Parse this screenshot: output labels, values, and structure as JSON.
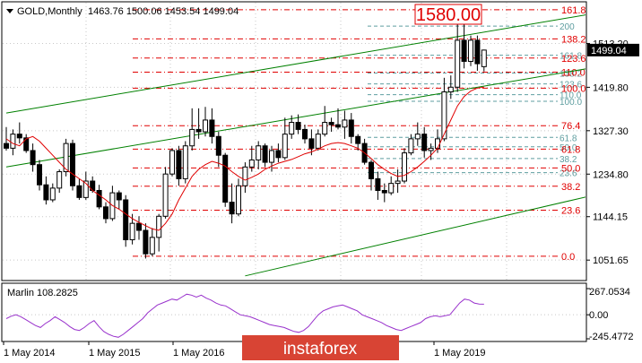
{
  "header": {
    "symbol": "GOLD,Monthly",
    "ohlc": "1463.76 1500.06 1453.54 1499.04"
  },
  "callout": "1580.00",
  "watermark": "instaforex",
  "colors": {
    "bg": "#ffffff",
    "grid": "#c8c8c8",
    "candle": "#000000",
    "ma": "#e00000",
    "channel": "#008000",
    "fib_red": "#e00000",
    "fib_teal": "#5f9ea0",
    "oscillator": "#9932cc",
    "price_box": "#000000",
    "watermark_bg": "#d84434"
  },
  "oscillator": {
    "name": "Marlin 108.2825",
    "scale_labels": [
      "267.0534",
      "0.00",
      "-245.4772"
    ],
    "ylim": [
      -245.4772,
      267.0534
    ],
    "values": [
      -40,
      -15,
      0,
      -20,
      -50,
      -80,
      -110,
      -130,
      -90,
      -60,
      -20,
      -50,
      -80,
      -120,
      -150,
      -160,
      -130,
      -90,
      -60,
      -120,
      -170,
      -200,
      -220,
      -230,
      -200,
      -160,
      -120,
      -80,
      -40,
      20,
      60,
      100,
      120,
      140,
      160,
      150,
      180,
      210,
      200,
      180,
      200,
      170,
      150,
      120,
      100,
      90,
      60,
      30,
      0,
      -10,
      -20,
      -40,
      -60,
      -80,
      -100,
      -110,
      -120,
      -130,
      -150,
      -170,
      -180,
      -160,
      -120,
      -60,
      0,
      40,
      60,
      80,
      90,
      100,
      80,
      60,
      40,
      0,
      -20,
      -40,
      -60,
      -80,
      -110,
      -130,
      -150,
      -160,
      -140,
      -120,
      -100,
      -80,
      -40,
      -20,
      -10,
      -20,
      -10,
      0,
      60,
      120,
      160,
      150,
      120,
      110,
      108
    ]
  },
  "chart_data": {
    "type": "candlestick",
    "title": "GOLD,Monthly",
    "ylim": [
      1010,
      1600
    ],
    "price_labels": [
      "1513.20",
      "1419.80",
      "1327.30",
      "1234.80",
      "1144.15",
      "1051.65"
    ],
    "price_values": [
      1513.2,
      1419.8,
      1327.3,
      1234.8,
      1144.15,
      1051.65
    ],
    "current_price": "1499.04",
    "current_price_value": 1499.04,
    "x_labels": [
      "1 May 2014",
      "1 May 2015",
      "1 May 2016",
      "1 May 2019"
    ],
    "fib_red": [
      {
        "label": "161.8",
        "price": 1585
      },
      {
        "label": "138.2",
        "price": 1523
      },
      {
        "label": "123.6",
        "price": 1482
      },
      {
        "label": "110.0",
        "price": 1452
      },
      {
        "label": "100.0",
        "price": 1418
      },
      {
        "label": "76.4",
        "price": 1338
      },
      {
        "label": "61.8",
        "price": 1288
      },
      {
        "label": "50.0",
        "price": 1248
      },
      {
        "label": "38.2",
        "price": 1209
      },
      {
        "label": "23.6",
        "price": 1158
      },
      {
        "label": "0.0",
        "price": 1060
      }
    ],
    "fib_teal": [
      {
        "label": "200",
        "price": 1550
      },
      {
        "label": "161.8",
        "price": 1488
      },
      {
        "label": "138.2",
        "price": 1450
      },
      {
        "label": "123.6",
        "price": 1427
      },
      {
        "label": "110.0",
        "price": 1404
      },
      {
        "label": "100.0",
        "price": 1390
      },
      {
        "label": "61.8",
        "price": 1313
      },
      {
        "label": "50.0",
        "price": 1293
      },
      {
        "label": "38.2",
        "price": 1268
      },
      {
        "label": "23.6",
        "price": 1238
      }
    ],
    "channel_lines": [
      {
        "name": "upper",
        "start": [
          0,
          1365
        ],
        "end": [
          117,
          1645
        ]
      },
      {
        "name": "middle",
        "start": [
          0,
          1250
        ],
        "end": [
          117,
          1530
        ]
      },
      {
        "name": "lower",
        "start": [
          36,
          1018
        ],
        "end": [
          124,
          1306
        ]
      }
    ],
    "candles": [
      {
        "o": 1300,
        "h": 1335,
        "l": 1285,
        "c": 1290
      },
      {
        "o": 1290,
        "h": 1330,
        "l": 1275,
        "c": 1320
      },
      {
        "o": 1320,
        "h": 1345,
        "l": 1300,
        "c": 1312
      },
      {
        "o": 1312,
        "h": 1320,
        "l": 1280,
        "c": 1285
      },
      {
        "o": 1285,
        "h": 1300,
        "l": 1240,
        "c": 1255
      },
      {
        "o": 1255,
        "h": 1265,
        "l": 1200,
        "c": 1212
      },
      {
        "o": 1212,
        "h": 1230,
        "l": 1170,
        "c": 1180
      },
      {
        "o": 1180,
        "h": 1215,
        "l": 1175,
        "c": 1205
      },
      {
        "o": 1205,
        "h": 1245,
        "l": 1195,
        "c": 1240
      },
      {
        "o": 1240,
        "h": 1310,
        "l": 1230,
        "c": 1300
      },
      {
        "o": 1300,
        "h": 1308,
        "l": 1200,
        "c": 1210
      },
      {
        "o": 1210,
        "h": 1225,
        "l": 1180,
        "c": 1185
      },
      {
        "o": 1185,
        "h": 1240,
        "l": 1180,
        "c": 1220
      },
      {
        "o": 1220,
        "h": 1230,
        "l": 1195,
        "c": 1200
      },
      {
        "o": 1200,
        "h": 1212,
        "l": 1160,
        "c": 1165
      },
      {
        "o": 1165,
        "h": 1175,
        "l": 1130,
        "c": 1140
      },
      {
        "o": 1140,
        "h": 1210,
        "l": 1135,
        "c": 1195
      },
      {
        "o": 1195,
        "h": 1200,
        "l": 1160,
        "c": 1180
      },
      {
        "o": 1180,
        "h": 1190,
        "l": 1080,
        "c": 1095
      },
      {
        "o": 1095,
        "h": 1150,
        "l": 1085,
        "c": 1130
      },
      {
        "o": 1130,
        "h": 1145,
        "l": 1095,
        "c": 1115
      },
      {
        "o": 1115,
        "h": 1130,
        "l": 1055,
        "c": 1065
      },
      {
        "o": 1065,
        "h": 1120,
        "l": 1060,
        "c": 1100
      },
      {
        "o": 1100,
        "h": 1150,
        "l": 1070,
        "c": 1145
      },
      {
        "o": 1145,
        "h": 1250,
        "l": 1140,
        "c": 1235
      },
      {
        "o": 1235,
        "h": 1290,
        "l": 1230,
        "c": 1285
      },
      {
        "o": 1285,
        "h": 1295,
        "l": 1210,
        "c": 1225
      },
      {
        "o": 1225,
        "h": 1305,
        "l": 1215,
        "c": 1295
      },
      {
        "o": 1295,
        "h": 1375,
        "l": 1285,
        "c": 1330
      },
      {
        "o": 1330,
        "h": 1375,
        "l": 1310,
        "c": 1325
      },
      {
        "o": 1325,
        "h": 1378,
        "l": 1315,
        "c": 1350
      },
      {
        "o": 1350,
        "h": 1375,
        "l": 1300,
        "c": 1315
      },
      {
        "o": 1315,
        "h": 1325,
        "l": 1250,
        "c": 1275
      },
      {
        "o": 1275,
        "h": 1280,
        "l": 1165,
        "c": 1175
      },
      {
        "o": 1175,
        "h": 1215,
        "l": 1130,
        "c": 1150
      },
      {
        "o": 1150,
        "h": 1225,
        "l": 1145,
        "c": 1210
      },
      {
        "o": 1210,
        "h": 1260,
        "l": 1195,
        "c": 1250
      },
      {
        "o": 1250,
        "h": 1295,
        "l": 1240,
        "c": 1265
      },
      {
        "o": 1265,
        "h": 1305,
        "l": 1245,
        "c": 1295
      },
      {
        "o": 1295,
        "h": 1300,
        "l": 1250,
        "c": 1260
      },
      {
        "o": 1260,
        "h": 1295,
        "l": 1240,
        "c": 1285
      },
      {
        "o": 1285,
        "h": 1300,
        "l": 1260,
        "c": 1270
      },
      {
        "o": 1270,
        "h": 1355,
        "l": 1265,
        "c": 1320
      },
      {
        "o": 1320,
        "h": 1360,
        "l": 1310,
        "c": 1345
      },
      {
        "o": 1345,
        "h": 1362,
        "l": 1320,
        "c": 1330
      },
      {
        "o": 1330,
        "h": 1340,
        "l": 1300,
        "c": 1310
      },
      {
        "o": 1310,
        "h": 1330,
        "l": 1275,
        "c": 1290
      },
      {
        "o": 1290,
        "h": 1330,
        "l": 1285,
        "c": 1320
      },
      {
        "o": 1320,
        "h": 1380,
        "l": 1315,
        "c": 1345
      },
      {
        "o": 1345,
        "h": 1355,
        "l": 1325,
        "c": 1340
      },
      {
        "o": 1340,
        "h": 1375,
        "l": 1330,
        "c": 1335
      },
      {
        "o": 1335,
        "h": 1370,
        "l": 1310,
        "c": 1350
      },
      {
        "o": 1350,
        "h": 1365,
        "l": 1300,
        "c": 1315
      },
      {
        "o": 1315,
        "h": 1320,
        "l": 1285,
        "c": 1300
      },
      {
        "o": 1300,
        "h": 1310,
        "l": 1255,
        "c": 1260
      },
      {
        "o": 1260,
        "h": 1265,
        "l": 1200,
        "c": 1225
      },
      {
        "o": 1225,
        "h": 1240,
        "l": 1180,
        "c": 1200
      },
      {
        "o": 1200,
        "h": 1215,
        "l": 1175,
        "c": 1195
      },
      {
        "o": 1195,
        "h": 1230,
        "l": 1190,
        "c": 1215
      },
      {
        "o": 1215,
        "h": 1245,
        "l": 1195,
        "c": 1220
      },
      {
        "o": 1220,
        "h": 1290,
        "l": 1215,
        "c": 1280
      },
      {
        "o": 1280,
        "h": 1320,
        "l": 1275,
        "c": 1310
      },
      {
        "o": 1310,
        "h": 1345,
        "l": 1295,
        "c": 1320
      },
      {
        "o": 1320,
        "h": 1335,
        "l": 1270,
        "c": 1285
      },
      {
        "o": 1285,
        "h": 1300,
        "l": 1265,
        "c": 1290
      },
      {
        "o": 1290,
        "h": 1330,
        "l": 1280,
        "c": 1310
      },
      {
        "o": 1310,
        "h": 1440,
        "l": 1305,
        "c": 1410
      },
      {
        "o": 1410,
        "h": 1445,
        "l": 1395,
        "c": 1420
      },
      {
        "o": 1420,
        "h": 1560,
        "l": 1410,
        "c": 1520
      },
      {
        "o": 1520,
        "h": 1555,
        "l": 1460,
        "c": 1475
      },
      {
        "o": 1475,
        "h": 1530,
        "l": 1465,
        "c": 1520
      },
      {
        "o": 1520,
        "h": 1530,
        "l": 1455,
        "c": 1470
      },
      {
        "o": 1463.76,
        "h": 1500.06,
        "l": 1453.54,
        "c": 1499.04
      }
    ],
    "ma_values": [
      1310,
      1300,
      1295,
      1310,
      1315,
      1305,
      1290,
      1275,
      1260,
      1245,
      1235,
      1225,
      1215,
      1200,
      1190,
      1180,
      1168,
      1160,
      1150,
      1140,
      1132,
      1125,
      1118,
      1115,
      1130,
      1150,
      1180,
      1205,
      1230,
      1245,
      1255,
      1262,
      1258,
      1252,
      1240,
      1230,
      1222,
      1228,
      1235,
      1245,
      1252,
      1258,
      1262,
      1266,
      1272,
      1278,
      1282,
      1288,
      1295,
      1300,
      1302,
      1300,
      1295,
      1290,
      1280,
      1268,
      1255,
      1245,
      1236,
      1230,
      1232,
      1240,
      1250,
      1262,
      1275,
      1290,
      1320,
      1350,
      1380,
      1400,
      1412,
      1418,
      1420
    ]
  }
}
